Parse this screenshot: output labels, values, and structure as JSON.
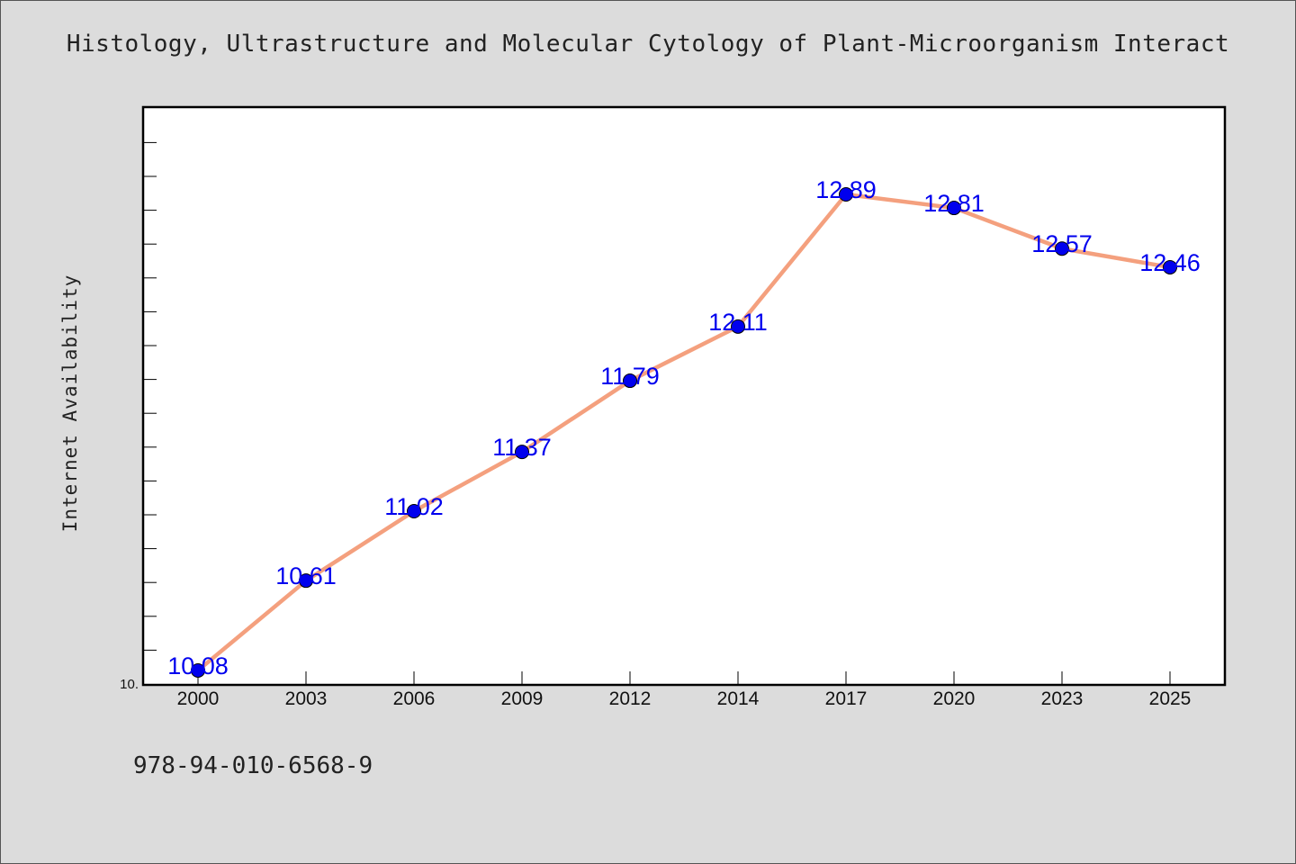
{
  "chart_data": {
    "type": "line",
    "title": "Histology, Ultrastructure and Molecular Cytology of Plant-Microorganism Interact",
    "xlabel": "",
    "ylabel": "Internet Availability",
    "categories": [
      "2000",
      "2003",
      "2006",
      "2009",
      "2012",
      "2014",
      "2017",
      "2020",
      "2023",
      "2025"
    ],
    "series": [
      {
        "values": [
          10.08,
          10.61,
          11.02,
          11.37,
          11.79,
          12.11,
          12.89,
          12.81,
          12.57,
          12.46
        ],
        "data_labels": [
          "10.08",
          "10.61",
          "11.02",
          "11.37",
          "11.79",
          "12.11",
          "12.89",
          "12.81",
          "12.57",
          "12.46"
        ]
      }
    ],
    "ylim": [
      10.0,
      13.4
    ],
    "y_tick_labels": [
      "10."
    ],
    "grid": false,
    "colors": {
      "line": "#f4a07e",
      "marker": "#0000ee",
      "label": "#0000ee",
      "plot_bg": "#ffffff",
      "page_bg": "#dcdcdc"
    }
  },
  "footer": {
    "isbn": "978-94-010-6568-9"
  }
}
